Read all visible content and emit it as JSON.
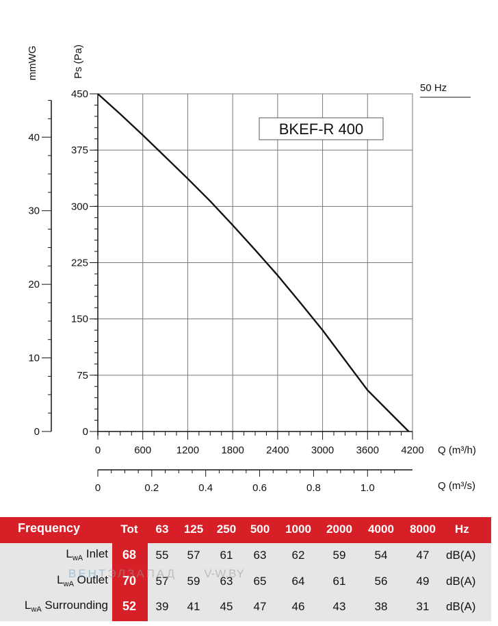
{
  "chart_data": {
    "type": "line",
    "title": "BKEF-R 400",
    "frequency_label": "50 Hz",
    "ylabel": "Ps (Pa)",
    "ylabel_secondary": "mmWG",
    "xlabel": "Q (m³/h)",
    "xlabel_secondary": "Q (m³/s)",
    "xlim": [
      0,
      4200
    ],
    "ylim": [
      0,
      450
    ],
    "grid": true,
    "x_ticks": [
      "0",
      "600",
      "1200",
      "1800",
      "2400",
      "3000",
      "3600",
      "4200"
    ],
    "y_ticks": [
      "0",
      "75",
      "150",
      "225",
      "300",
      "375",
      "450"
    ],
    "y2_ticks": [
      "0",
      "10",
      "20",
      "30",
      "40"
    ],
    "x2_ticks": [
      "0",
      "0.2",
      "0.4",
      "0.6",
      "0.8",
      "1.0"
    ],
    "series": [
      {
        "x": [
          0,
          300,
          600,
          900,
          1200,
          1500,
          1800,
          2100,
          2400,
          2700,
          3000,
          3300,
          3600,
          3900,
          4150
        ],
        "y": [
          450,
          423,
          395,
          366,
          337,
          307,
          275,
          242,
          208,
          172,
          135,
          95,
          55,
          25,
          0
        ]
      }
    ]
  },
  "sound_table": {
    "header_label": "Frequency",
    "columns": [
      "Tot",
      "63",
      "125",
      "250",
      "500",
      "1000",
      "2000",
      "4000",
      "8000",
      "Hz"
    ],
    "rows": [
      {
        "label_main": "L",
        "label_sub": "wA",
        "label_rest": " Inlet",
        "values": [
          "68",
          "55",
          "57",
          "61",
          "63",
          "62",
          "59",
          "54",
          "47"
        ],
        "unit": "dB(A)"
      },
      {
        "label_main": "L",
        "label_sub": "wA",
        "label_rest": " Outlet",
        "values": [
          "70",
          "57",
          "59",
          "63",
          "65",
          "64",
          "61",
          "56",
          "49"
        ],
        "unit": "dB(A)"
      },
      {
        "label_main": "L",
        "label_sub": "wA",
        "label_rest": " Surrounding",
        "values": [
          "52",
          "39",
          "41",
          "45",
          "47",
          "46",
          "43",
          "38",
          "31"
        ],
        "unit": "dB(A)"
      }
    ]
  },
  "watermark": {
    "part1": "ВЕНТ",
    "part2": "ЭЛЗАПАД",
    "part3": "V-W.BY"
  },
  "colors": {
    "accent": "#d61f26",
    "table_bg": "#e6e6e6"
  }
}
